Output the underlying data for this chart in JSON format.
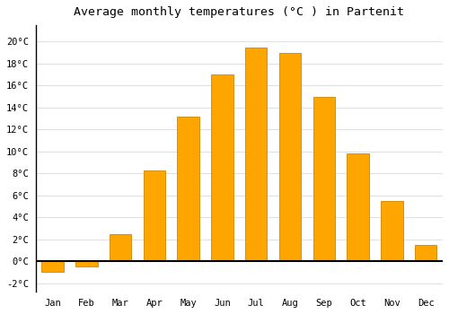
{
  "months": [
    "Jan",
    "Feb",
    "Mar",
    "Apr",
    "May",
    "Jun",
    "Jul",
    "Aug",
    "Sep",
    "Oct",
    "Nov",
    "Dec"
  ],
  "temperatures": [
    -1.0,
    -0.5,
    2.5,
    8.3,
    13.2,
    17.0,
    19.5,
    19.0,
    15.0,
    9.8,
    5.5,
    1.5
  ],
  "bar_color": "#FFA500",
  "bar_edge_color": "#CC8800",
  "title": "Average monthly temperatures (°C ) in Partenit",
  "title_fontsize": 9.5,
  "ylabel_ticks": [
    "-2°C",
    "0°C",
    "2°C",
    "4°C",
    "6°C",
    "8°C",
    "10°C",
    "12°C",
    "14°C",
    "16°C",
    "18°C",
    "20°C"
  ],
  "ytick_values": [
    -2,
    0,
    2,
    4,
    6,
    8,
    10,
    12,
    14,
    16,
    18,
    20
  ],
  "ylim": [
    -2.8,
    21.5
  ],
  "background_color": "#ffffff",
  "grid_color": "#e0e0e0",
  "tick_label_fontsize": 7.5,
  "title_font_family": "monospace"
}
